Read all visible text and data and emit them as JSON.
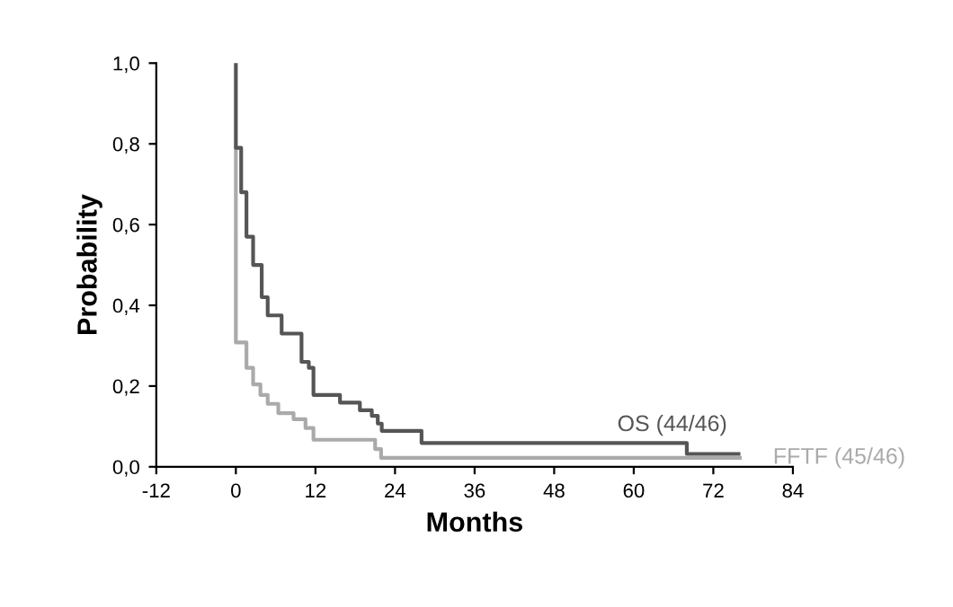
{
  "chart_data": {
    "type": "step",
    "xlabel": "Months",
    "ylabel": "Probability",
    "xlim": [
      -12,
      84
    ],
    "xticks": [
      -12,
      0,
      12,
      24,
      36,
      48,
      60,
      72,
      84
    ],
    "ylim": [
      0,
      1
    ],
    "yticks": [
      {
        "value": 0,
        "label": "0,0"
      },
      {
        "value": 0.2,
        "label": "0,2"
      },
      {
        "value": 0.4,
        "label": "0,4"
      },
      {
        "value": 0.6,
        "label": "0,6"
      },
      {
        "value": 0.8,
        "label": "0,8"
      },
      {
        "value": 1,
        "label": "1,0"
      }
    ],
    "grid": false,
    "legend": false,
    "series": [
      {
        "name": "OS (44/46)",
        "color": "#555555",
        "x": [
          0,
          0,
          0.8,
          1.6,
          2.6,
          3.9,
          4.8,
          6.9,
          9.9,
          11.0,
          11.7,
          15.7,
          18.7,
          20.5,
          21.4,
          22.0,
          28.0,
          68.0,
          75.8
        ],
        "values": [
          1.0,
          0.79,
          0.68,
          0.57,
          0.5,
          0.42,
          0.375,
          0.33,
          0.26,
          0.245,
          0.178,
          0.159,
          0.14,
          0.126,
          0.107,
          0.089,
          0.059,
          0.032,
          0.032
        ]
      },
      {
        "name": "FFTF (45/46)",
        "color": "#aaaaaa",
        "x": [
          0,
          0,
          1.6,
          2.6,
          3.7,
          4.8,
          6.4,
          8.7,
          10.5,
          11.7,
          21.0,
          21.9,
          76.0
        ],
        "values": [
          0.79,
          0.308,
          0.245,
          0.204,
          0.178,
          0.156,
          0.133,
          0.118,
          0.096,
          0.067,
          0.044,
          0.022,
          0.022
        ]
      }
    ]
  }
}
